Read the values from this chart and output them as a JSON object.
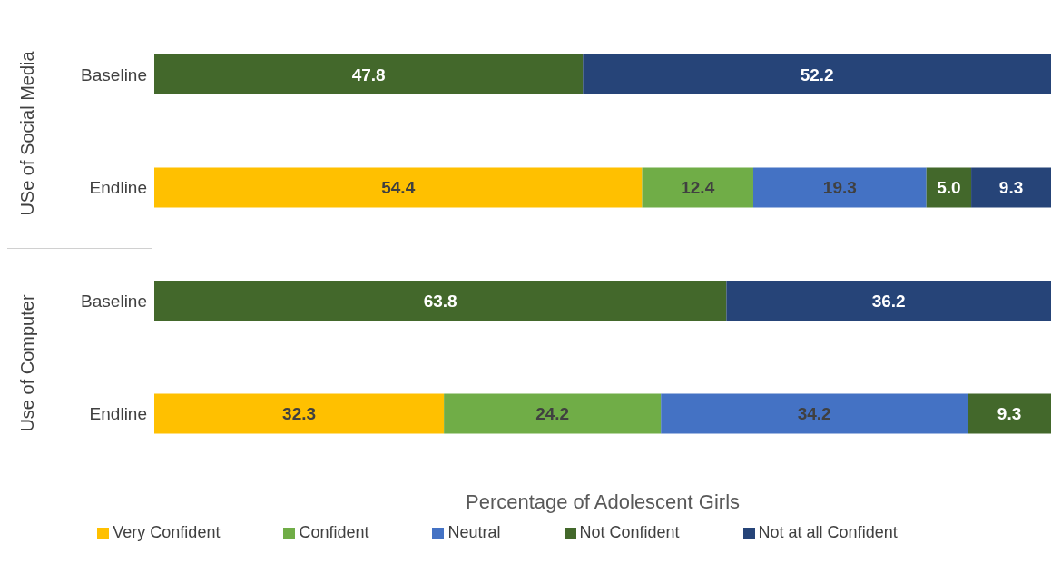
{
  "chart_data": {
    "type": "bar",
    "orientation": "horizontal",
    "stacked": true,
    "xlabel": "Percentage of Adolescent Girls",
    "categories": [
      "Baseline",
      "Endline",
      "Baseline",
      "Endline"
    ],
    "annotations": [
      "USe of Social Media",
      "Use of Computer"
    ],
    "xlim": [
      0,
      100
    ],
    "tick_labels": "y",
    "legend": "bottom",
    "grid": false,
    "series": [
      {
        "name": "Very Confident",
        "color": "#ffc000",
        "values": [
          null,
          54.4,
          null,
          32.3
        ],
        "value_labels": [
          null,
          "54.4",
          null,
          "32.3"
        ]
      },
      {
        "name": "Confident",
        "color": "#70ad47",
        "values": [
          null,
          12.4,
          null,
          24.2
        ],
        "value_labels": [
          null,
          "12.4",
          null,
          "24.2"
        ]
      },
      {
        "name": "Neutral",
        "color": "#4472c4",
        "values": [
          null,
          19.3,
          null,
          34.2
        ],
        "value_labels": [
          null,
          "19.3",
          null,
          "34.2"
        ]
      },
      {
        "name": "Not Confident",
        "color": "#43682b",
        "values": [
          47.8,
          5.0,
          63.8,
          9.3
        ],
        "value_labels": [
          "47.8",
          "5.0",
          "63.8",
          "9.3"
        ]
      },
      {
        "name": "Not at all Confident",
        "color": "#264478",
        "values": [
          52.2,
          9.3,
          36.2,
          null
        ],
        "value_labels": [
          "52.2",
          "9.3",
          "36.2",
          null
        ]
      }
    ]
  }
}
